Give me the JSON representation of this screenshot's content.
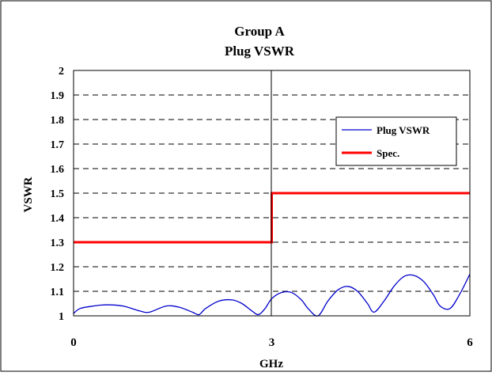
{
  "chart_data": {
    "type": "line",
    "title": "Group A",
    "subtitle": "Plug VSWR",
    "xlabel": "GHz",
    "ylabel": "VSWR",
    "xlim": [
      0,
      6
    ],
    "ylim": [
      1,
      2
    ],
    "x_ticks": [
      "0",
      "3",
      "6"
    ],
    "y_ticks": [
      "1",
      "1.1",
      "1.2",
      "1.3",
      "1.4",
      "1.5",
      "1.6",
      "1.7",
      "1.8",
      "1.9",
      "2"
    ],
    "grid": "horizontal dashed",
    "legend_position": "right",
    "series": [
      {
        "name": "Plug VSWR",
        "color": "#0000cc",
        "x": [
          0,
          0.1,
          0.3,
          0.5,
          0.75,
          1.0,
          1.15,
          1.4,
          1.6,
          1.8,
          1.9,
          2.0,
          2.2,
          2.4,
          2.55,
          2.7,
          2.8,
          2.9,
          3.0,
          3.15,
          3.3,
          3.45,
          3.55,
          3.7,
          3.85,
          4.0,
          4.15,
          4.3,
          4.45,
          4.55,
          4.7,
          4.85,
          5.0,
          5.15,
          5.3,
          5.45,
          5.55,
          5.7,
          5.85,
          6.0
        ],
        "y": [
          1.01,
          1.03,
          1.04,
          1.045,
          1.04,
          1.02,
          1.015,
          1.04,
          1.035,
          1.015,
          1.005,
          1.03,
          1.06,
          1.065,
          1.05,
          1.02,
          1.005,
          1.03,
          1.07,
          1.095,
          1.095,
          1.065,
          1.03,
          1.0,
          1.06,
          1.105,
          1.12,
          1.1,
          1.05,
          1.015,
          1.06,
          1.12,
          1.16,
          1.165,
          1.14,
          1.085,
          1.04,
          1.03,
          1.09,
          1.17
        ]
      },
      {
        "name": "Spec.",
        "color": "#ff0000",
        "x": [
          0,
          3,
          3,
          6
        ],
        "y": [
          1.3,
          1.3,
          1.5,
          1.5
        ]
      }
    ]
  }
}
